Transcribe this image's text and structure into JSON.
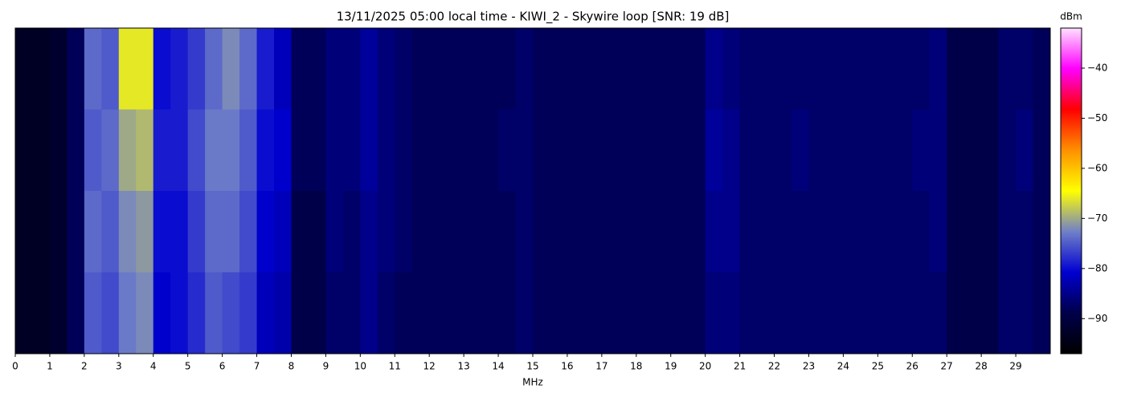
{
  "chart_data": {
    "type": "heatmap",
    "title": "13/11/2025 05:00 local time - KIWI_2 - Skywire loop [SNR: 19 dB]",
    "x_label": "MHz",
    "colorbar_label": "dBm",
    "xbins": [
      0,
      0.5,
      1,
      1.5,
      2,
      2.5,
      3,
      3.5,
      4,
      4.5,
      5,
      5.5,
      6,
      6.5,
      7,
      7.5,
      8,
      8.5,
      9,
      9.5,
      10,
      10.5,
      11,
      11.5,
      12,
      12.5,
      13,
      13.5,
      14,
      14.5,
      15,
      15.5,
      16,
      16.5,
      17,
      17.5,
      18,
      18.5,
      19,
      19.5,
      20,
      20.5,
      21,
      21.5,
      22,
      22.5,
      23,
      23.5,
      24,
      24.5,
      25,
      25.5,
      26,
      26.5,
      27,
      27.5,
      28,
      28.5,
      29,
      29.5,
      30
    ],
    "xlim": [
      0,
      30
    ],
    "xticks": [
      0,
      1,
      2,
      3,
      4,
      5,
      6,
      7,
      8,
      9,
      10,
      11,
      12,
      13,
      14,
      15,
      16,
      17,
      18,
      19,
      20,
      21,
      22,
      23,
      24,
      25,
      26,
      27,
      28,
      29
    ],
    "z": [
      [
        -93,
        -93,
        -92,
        -88,
        -74,
        -75,
        -66,
        -66,
        -80,
        -79,
        -77,
        -74,
        -72,
        -74,
        -79,
        -82,
        -88,
        -88,
        -86,
        -86,
        -84,
        -86,
        -87,
        -88,
        -88,
        -88,
        -88,
        -88,
        -88,
        -87,
        -88,
        -88,
        -88,
        -88,
        -88,
        -88,
        -88,
        -88,
        -88,
        -88,
        -85,
        -86,
        -87,
        -87,
        -87,
        -87,
        -87,
        -87,
        -87,
        -87,
        -87,
        -87,
        -87,
        -86,
        -89,
        -89,
        -89,
        -87,
        -87,
        -88
      ],
      [
        -93,
        -93,
        -92,
        -88,
        -75,
        -74,
        -70,
        -69,
        -79,
        -79,
        -76,
        -73,
        -73,
        -75,
        -80,
        -81,
        -88,
        -88,
        -86,
        -86,
        -84,
        -86,
        -87,
        -88,
        -88,
        -88,
        -88,
        -88,
        -87,
        -87,
        -88,
        -88,
        -88,
        -88,
        -88,
        -88,
        -88,
        -88,
        -88,
        -88,
        -84,
        -85,
        -87,
        -87,
        -87,
        -86,
        -87,
        -87,
        -87,
        -87,
        -87,
        -87,
        -86,
        -86,
        -89,
        -89,
        -89,
        -87,
        -86,
        -88
      ],
      [
        -93,
        -93,
        -92,
        -88,
        -74,
        -75,
        -72,
        -71,
        -80,
        -80,
        -77,
        -74,
        -74,
        -76,
        -81,
        -82,
        -89,
        -89,
        -86,
        -87,
        -85,
        -86,
        -87,
        -88,
        -88,
        -88,
        -88,
        -88,
        -88,
        -87,
        -88,
        -88,
        -88,
        -88,
        -88,
        -88,
        -88,
        -88,
        -88,
        -88,
        -85,
        -85,
        -87,
        -87,
        -87,
        -87,
        -87,
        -87,
        -87,
        -87,
        -87,
        -87,
        -87,
        -86,
        -89,
        -89,
        -89,
        -87,
        -87,
        -88
      ],
      [
        -93,
        -93,
        -92,
        -88,
        -75,
        -76,
        -73,
        -72,
        -81,
        -80,
        -78,
        -75,
        -76,
        -77,
        -82,
        -83,
        -89,
        -89,
        -87,
        -87,
        -85,
        -87,
        -88,
        -88,
        -88,
        -88,
        -88,
        -88,
        -88,
        -87,
        -88,
        -88,
        -88,
        -88,
        -88,
        -88,
        -88,
        -88,
        -88,
        -88,
        -86,
        -86,
        -87,
        -87,
        -87,
        -87,
        -87,
        -87,
        -87,
        -87,
        -87,
        -87,
        -87,
        -87,
        -89,
        -89,
        -89,
        -87,
        -87,
        -88
      ]
    ],
    "clim": [
      -97,
      -32
    ],
    "cticks": [
      {
        "value": -90,
        "label": "−90"
      },
      {
        "value": -80,
        "label": "−80"
      },
      {
        "value": -70,
        "label": "−70"
      },
      {
        "value": -60,
        "label": "−60"
      },
      {
        "value": -50,
        "label": "−50"
      },
      {
        "value": -40,
        "label": "−40"
      }
    ],
    "colormap": [
      "#000000",
      "#00004a",
      "#0000d0",
      "#7080c8",
      "#ffff00",
      "#ff9000",
      "#ff0000",
      "#ff00ff",
      "#ffe0ff"
    ]
  }
}
